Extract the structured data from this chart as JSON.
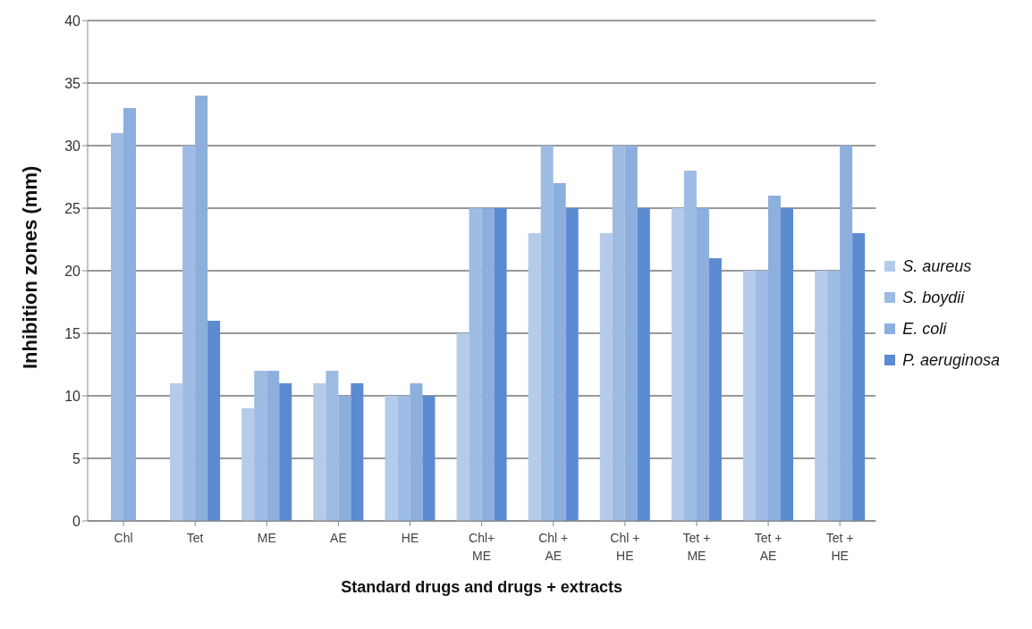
{
  "chart_data": {
    "type": "bar",
    "xlabel": "Standard drugs and drugs + extracts",
    "ylabel": "Inhibition zones (mm)",
    "categories": [
      "Chl",
      "Tet",
      "ME",
      "AE",
      "HE",
      "Chl+ ME",
      "Chl + AE",
      "Chl + HE",
      "Tet + ME",
      "Tet + AE",
      "Tet + HE"
    ],
    "series": [
      {
        "name": "S. aureus",
        "color": "#b4cbea",
        "values": [
          0,
          11,
          9,
          11,
          10,
          15,
          23,
          23,
          25,
          20,
          20
        ]
      },
      {
        "name": "S. boydii",
        "color": "#9dbbe3",
        "values": [
          31,
          30,
          12,
          12,
          10,
          25,
          30,
          30,
          28,
          20,
          20
        ]
      },
      {
        "name": "E. coli",
        "color": "#8cafdd",
        "values": [
          33,
          34,
          12,
          10,
          11,
          25,
          27,
          30,
          25,
          26,
          30
        ]
      },
      {
        "name": "P. aeruginosa",
        "color": "#5b8bd0",
        "values": [
          0,
          16,
          11,
          11,
          10,
          25,
          25,
          25,
          21,
          25,
          23
        ]
      }
    ],
    "ylim": [
      0,
      40
    ],
    "yticks": [
      0,
      5,
      10,
      15,
      20,
      25,
      30,
      35,
      40
    ],
    "grid": "y",
    "legend": "right"
  }
}
